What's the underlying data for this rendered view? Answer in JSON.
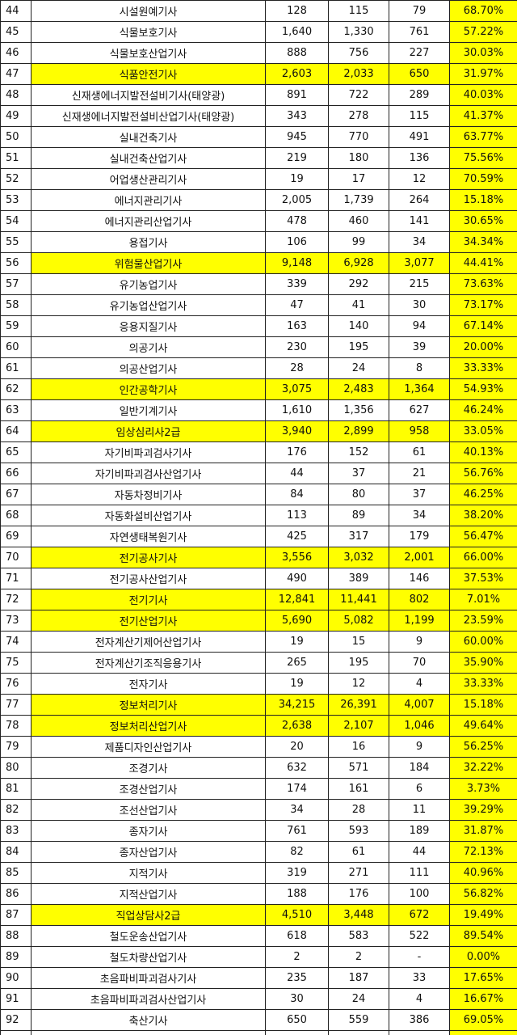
{
  "table": {
    "highlight_color": "#ffff00",
    "rows": [
      {
        "cells": [
          "44",
          "시설원예기사",
          "128",
          "115",
          "79",
          "68.70%"
        ],
        "highlight": false
      },
      {
        "cells": [
          "45",
          "식물보호기사",
          "1,640",
          "1,330",
          "761",
          "57.22%"
        ],
        "highlight": false
      },
      {
        "cells": [
          "46",
          "식물보호산업기사",
          "888",
          "756",
          "227",
          "30.03%"
        ],
        "highlight": false
      },
      {
        "cells": [
          "47",
          "식품안전기사",
          "2,603",
          "2,033",
          "650",
          "31.97%"
        ],
        "highlight": true
      },
      {
        "cells": [
          "48",
          "신재생에너지발전설비기사(태양광)",
          "891",
          "722",
          "289",
          "40.03%"
        ],
        "highlight": false
      },
      {
        "cells": [
          "49",
          "신재생에너지발전설비산업기사(태양광)",
          "343",
          "278",
          "115",
          "41.37%"
        ],
        "highlight": false
      },
      {
        "cells": [
          "50",
          "실내건축기사",
          "945",
          "770",
          "491",
          "63.77%"
        ],
        "highlight": false
      },
      {
        "cells": [
          "51",
          "실내건축산업기사",
          "219",
          "180",
          "136",
          "75.56%"
        ],
        "highlight": false
      },
      {
        "cells": [
          "52",
          "어업생산관리기사",
          "19",
          "17",
          "12",
          "70.59%"
        ],
        "highlight": false
      },
      {
        "cells": [
          "53",
          "에너지관리기사",
          "2,005",
          "1,739",
          "264",
          "15.18%"
        ],
        "highlight": false
      },
      {
        "cells": [
          "54",
          "에너지관리산업기사",
          "478",
          "460",
          "141",
          "30.65%"
        ],
        "highlight": false
      },
      {
        "cells": [
          "55",
          "용접기사",
          "106",
          "99",
          "34",
          "34.34%"
        ],
        "highlight": false
      },
      {
        "cells": [
          "56",
          "위험물산업기사",
          "9,148",
          "6,928",
          "3,077",
          "44.41%"
        ],
        "highlight": true
      },
      {
        "cells": [
          "57",
          "유기농업기사",
          "339",
          "292",
          "215",
          "73.63%"
        ],
        "highlight": false
      },
      {
        "cells": [
          "58",
          "유기농업산업기사",
          "47",
          "41",
          "30",
          "73.17%"
        ],
        "highlight": false
      },
      {
        "cells": [
          "59",
          "응용지질기사",
          "163",
          "140",
          "94",
          "67.14%"
        ],
        "highlight": false
      },
      {
        "cells": [
          "60",
          "의공기사",
          "230",
          "195",
          "39",
          "20.00%"
        ],
        "highlight": false
      },
      {
        "cells": [
          "61",
          "의공산업기사",
          "28",
          "24",
          "8",
          "33.33%"
        ],
        "highlight": false
      },
      {
        "cells": [
          "62",
          "인간공학기사",
          "3,075",
          "2,483",
          "1,364",
          "54.93%"
        ],
        "highlight": true
      },
      {
        "cells": [
          "63",
          "일반기계기사",
          "1,610",
          "1,356",
          "627",
          "46.24%"
        ],
        "highlight": false
      },
      {
        "cells": [
          "64",
          "임상심리사2급",
          "3,940",
          "2,899",
          "958",
          "33.05%"
        ],
        "highlight": true
      },
      {
        "cells": [
          "65",
          "자기비파괴검사기사",
          "176",
          "152",
          "61",
          "40.13%"
        ],
        "highlight": false
      },
      {
        "cells": [
          "66",
          "자기비파괴검사산업기사",
          "44",
          "37",
          "21",
          "56.76%"
        ],
        "highlight": false
      },
      {
        "cells": [
          "67",
          "자동차정비기사",
          "84",
          "80",
          "37",
          "46.25%"
        ],
        "highlight": false
      },
      {
        "cells": [
          "68",
          "자동화설비산업기사",
          "113",
          "89",
          "34",
          "38.20%"
        ],
        "highlight": false
      },
      {
        "cells": [
          "69",
          "자연생태복원기사",
          "425",
          "317",
          "179",
          "56.47%"
        ],
        "highlight": false
      },
      {
        "cells": [
          "70",
          "전기공사기사",
          "3,556",
          "3,032",
          "2,001",
          "66.00%"
        ],
        "highlight": true
      },
      {
        "cells": [
          "71",
          "전기공사산업기사",
          "490",
          "389",
          "146",
          "37.53%"
        ],
        "highlight": false
      },
      {
        "cells": [
          "72",
          "전기기사",
          "12,841",
          "11,441",
          "802",
          "7.01%"
        ],
        "highlight": true
      },
      {
        "cells": [
          "73",
          "전기산업기사",
          "5,690",
          "5,082",
          "1,199",
          "23.59%"
        ],
        "highlight": true
      },
      {
        "cells": [
          "74",
          "전자계산기제어산업기사",
          "19",
          "15",
          "9",
          "60.00%"
        ],
        "highlight": false
      },
      {
        "cells": [
          "75",
          "전자계산기조직응용기사",
          "265",
          "195",
          "70",
          "35.90%"
        ],
        "highlight": false
      },
      {
        "cells": [
          "76",
          "전자기사",
          "19",
          "12",
          "4",
          "33.33%"
        ],
        "highlight": false
      },
      {
        "cells": [
          "77",
          "정보처리기사",
          "34,215",
          "26,391",
          "4,007",
          "15.18%"
        ],
        "highlight": true
      },
      {
        "cells": [
          "78",
          "정보처리산업기사",
          "2,638",
          "2,107",
          "1,046",
          "49.64%"
        ],
        "highlight": true
      },
      {
        "cells": [
          "79",
          "제품디자인산업기사",
          "20",
          "16",
          "9",
          "56.25%"
        ],
        "highlight": false
      },
      {
        "cells": [
          "80",
          "조경기사",
          "632",
          "571",
          "184",
          "32.22%"
        ],
        "highlight": false
      },
      {
        "cells": [
          "81",
          "조경산업기사",
          "174",
          "161",
          "6",
          "3.73%"
        ],
        "highlight": false
      },
      {
        "cells": [
          "82",
          "조선산업기사",
          "34",
          "28",
          "11",
          "39.29%"
        ],
        "highlight": false
      },
      {
        "cells": [
          "83",
          "종자기사",
          "761",
          "593",
          "189",
          "31.87%"
        ],
        "highlight": false
      },
      {
        "cells": [
          "84",
          "종자산업기사",
          "82",
          "61",
          "44",
          "72.13%"
        ],
        "highlight": false
      },
      {
        "cells": [
          "85",
          "지적기사",
          "319",
          "271",
          "111",
          "40.96%"
        ],
        "highlight": false
      },
      {
        "cells": [
          "86",
          "지적산업기사",
          "188",
          "176",
          "100",
          "56.82%"
        ],
        "highlight": false
      },
      {
        "cells": [
          "87",
          "직업상담사2급",
          "4,510",
          "3,448",
          "672",
          "19.49%"
        ],
        "highlight": true
      },
      {
        "cells": [
          "88",
          "철도운송산업기사",
          "618",
          "583",
          "522",
          "89.54%"
        ],
        "highlight": false
      },
      {
        "cells": [
          "89",
          "철도차량산업기사",
          "2",
          "2",
          "-",
          "0.00%"
        ],
        "highlight": false
      },
      {
        "cells": [
          "90",
          "초음파비파괴검사기사",
          "235",
          "187",
          "33",
          "17.65%"
        ],
        "highlight": false
      },
      {
        "cells": [
          "91",
          "초음파비파괴검사산업기사",
          "30",
          "24",
          "4",
          "16.67%"
        ],
        "highlight": false
      },
      {
        "cells": [
          "92",
          "축산기사",
          "650",
          "559",
          "386",
          "69.05%"
        ],
        "highlight": false
      }
    ]
  }
}
